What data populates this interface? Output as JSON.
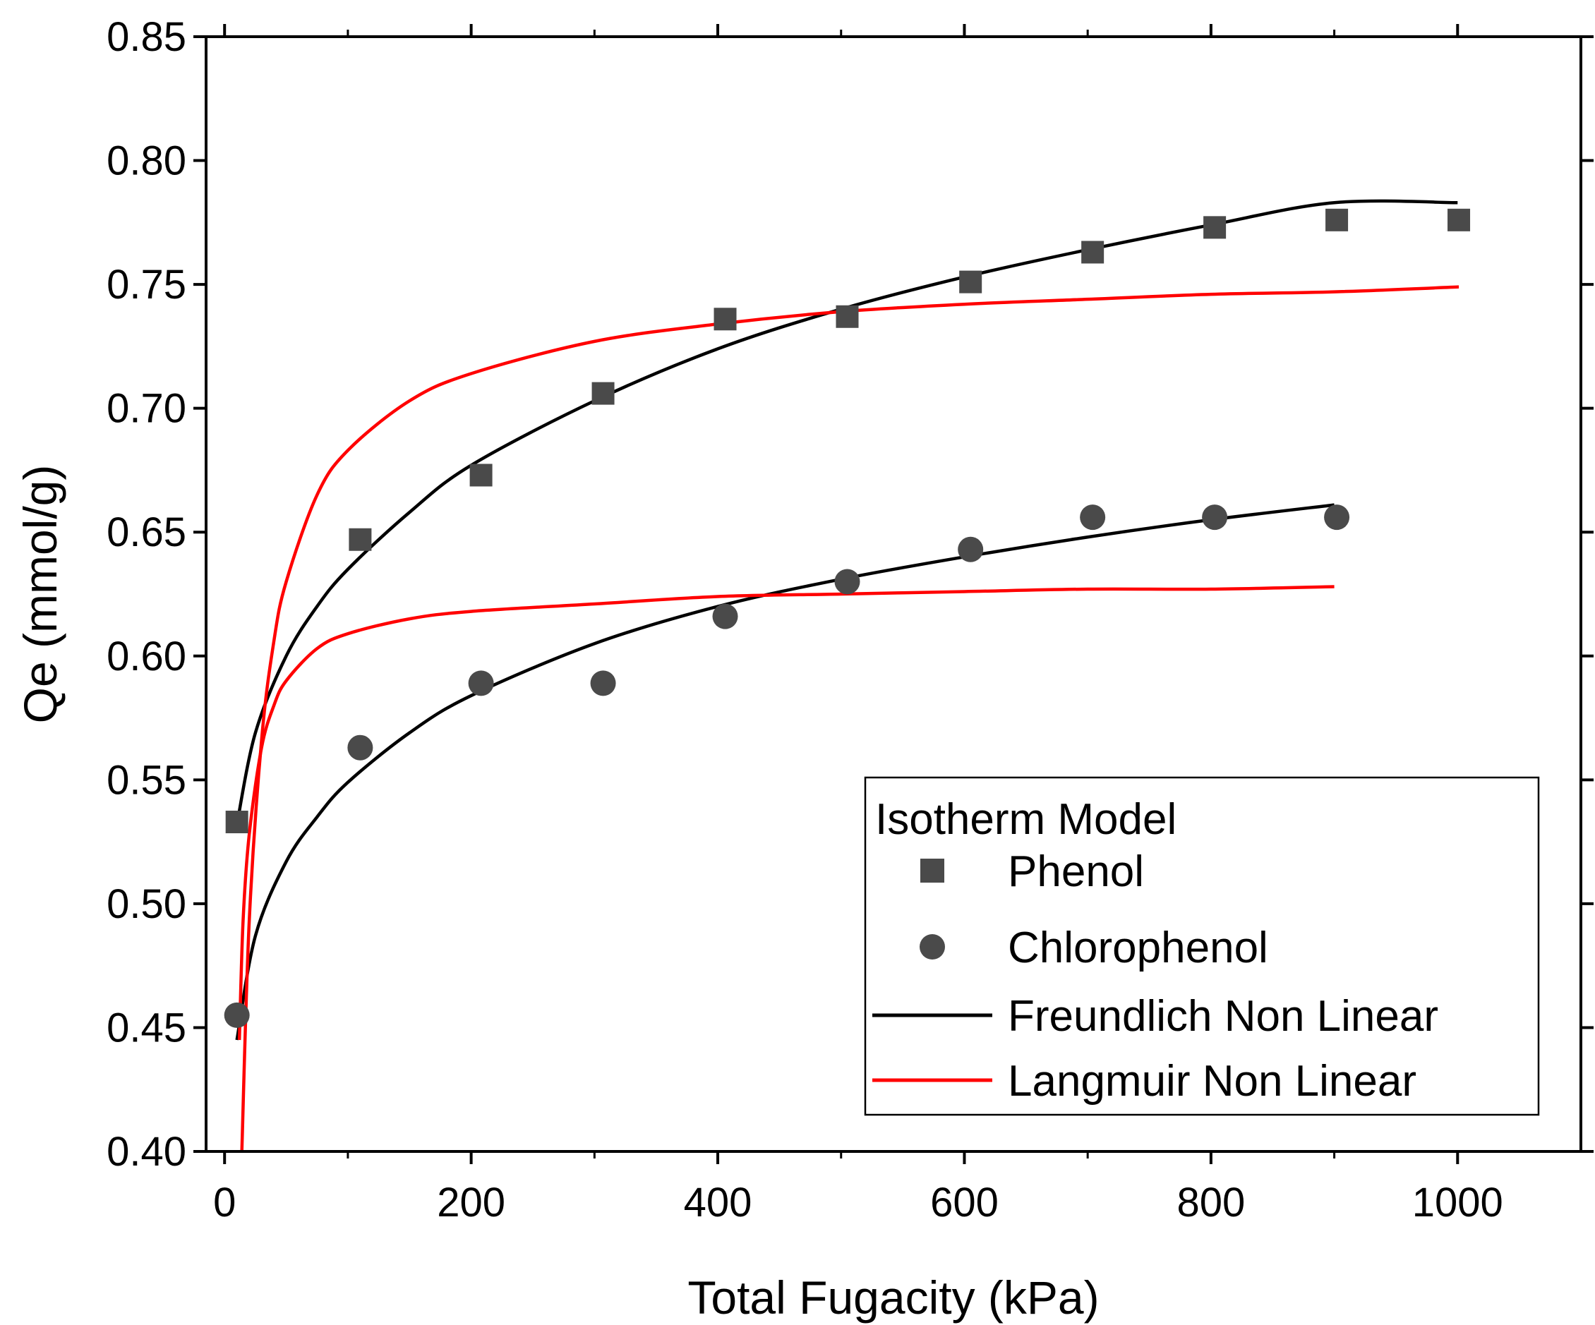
{
  "chart_data": {
    "type": "scatter",
    "xlabel": "Total Fugacity (kPa)",
    "ylabel": "Qe (mmol/g)",
    "xlim": [
      -15,
      1100
    ],
    "ylim": [
      0.4,
      0.85
    ],
    "xticks": [
      "0",
      "200",
      "400",
      "600",
      "800",
      "1000"
    ],
    "xtick_values": [
      0,
      200,
      400,
      600,
      800,
      1000
    ],
    "yticks": [
      "0.40",
      "0.45",
      "0.50",
      "0.55",
      "0.60",
      "0.65",
      "0.70",
      "0.75",
      "0.80",
      "0.85"
    ],
    "ytick_values": [
      0.4,
      0.45,
      0.5,
      0.55,
      0.6,
      0.65,
      0.7,
      0.75,
      0.8,
      0.85
    ],
    "legend": {
      "title": "Isotherm Model",
      "placement": "bottom-right",
      "entries": [
        "Phenol",
        "Chlorophenol",
        "Freundlich Non Linear",
        "Langmuir Non Linear"
      ]
    },
    "series": [
      {
        "name": "Phenol",
        "kind": "markers",
        "marker": "square",
        "color": "#4a4a4a",
        "x": [
          10,
          110,
          208,
          307,
          406,
          505,
          605,
          704,
          803,
          902,
          1001
        ],
        "y": [
          0.533,
          0.647,
          0.673,
          0.706,
          0.736,
          0.737,
          0.751,
          0.763,
          0.773,
          0.776,
          0.776
        ]
      },
      {
        "name": "Chlorophenol",
        "kind": "markers",
        "marker": "circle",
        "color": "#4a4a4a",
        "x": [
          10,
          110,
          208,
          307,
          406,
          505,
          605,
          704,
          803,
          902
        ],
        "y": [
          0.455,
          0.563,
          0.589,
          0.589,
          0.616,
          0.63,
          0.643,
          0.656,
          0.656,
          0.656
        ]
      },
      {
        "name": "Freundlich Non Linear (Phenol)",
        "kind": "line",
        "color": "#000000",
        "x": [
          10,
          25,
          50,
          75,
          100,
          150,
          200,
          300,
          400,
          500,
          600,
          700,
          800,
          900,
          1000
        ],
        "y": [
          0.532,
          0.569,
          0.6,
          0.62,
          0.635,
          0.658,
          0.677,
          0.703,
          0.724,
          0.74,
          0.753,
          0.764,
          0.774,
          0.783,
          0.783
        ]
      },
      {
        "name": "Freundlich Non Linear (Chlorophenol)",
        "kind": "line",
        "color": "#000000",
        "x": [
          10,
          25,
          50,
          75,
          100,
          150,
          200,
          300,
          400,
          500,
          600,
          700,
          800,
          900
        ],
        "y": [
          0.445,
          0.487,
          0.517,
          0.535,
          0.549,
          0.569,
          0.584,
          0.605,
          0.62,
          0.631,
          0.64,
          0.648,
          0.655,
          0.661
        ]
      },
      {
        "name": "Langmuir Non Linear (Phenol)",
        "kind": "line",
        "color": "#ff0000",
        "x": [
          14,
          20,
          30,
          40,
          50,
          75,
          100,
          150,
          200,
          300,
          400,
          500,
          600,
          700,
          800,
          900,
          1001
        ],
        "y": [
          0.4,
          0.493,
          0.566,
          0.606,
          0.63,
          0.665,
          0.683,
          0.703,
          0.714,
          0.727,
          0.734,
          0.739,
          0.742,
          0.744,
          0.746,
          0.747,
          0.749
        ]
      },
      {
        "name": "Langmuir Non Linear (Chlorophenol)",
        "kind": "line",
        "color": "#ff0000",
        "x": [
          12,
          15,
          20,
          30,
          40,
          50,
          75,
          100,
          150,
          200,
          300,
          400,
          500,
          600,
          700,
          800,
          900
        ],
        "y": [
          0.445,
          0.493,
          0.528,
          0.563,
          0.58,
          0.59,
          0.603,
          0.609,
          0.615,
          0.618,
          0.621,
          0.624,
          0.625,
          0.626,
          0.627,
          0.627,
          0.628
        ]
      }
    ]
  }
}
